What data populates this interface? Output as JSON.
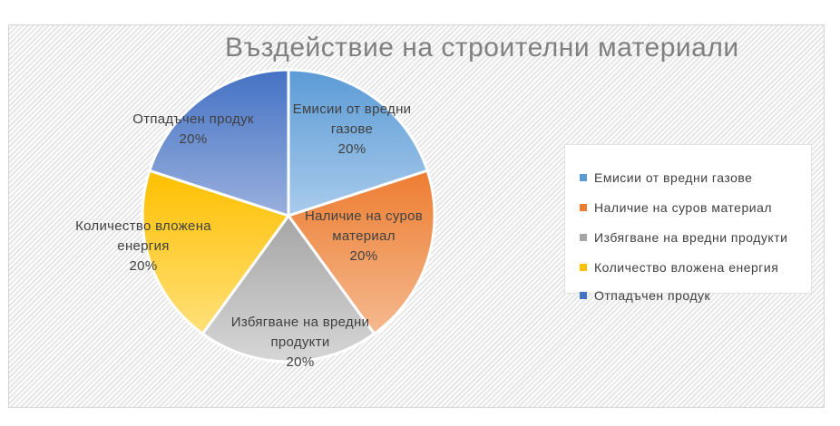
{
  "chart_data": {
    "type": "pie",
    "title": "Въздействие на строителни  материали",
    "slices": [
      {
        "name": "Емисии от вредни газове",
        "value": 20,
        "label_lines": [
          "Емисии от вредни",
          "газове",
          "20%"
        ],
        "color": "#5B9BD5",
        "color_light": "#A9CBEC"
      },
      {
        "name": "Наличие на суров материал",
        "value": 20,
        "label_lines": [
          "Наличие на суров",
          "материал",
          "20%"
        ],
        "color": "#ED7D31",
        "color_light": "#F5B98F"
      },
      {
        "name": "Избягване на вредни продукти",
        "value": 20,
        "label_lines": [
          "Избягване на вредни",
          "продукти",
          "20%"
        ],
        "color": "#A5A5A5",
        "color_light": "#D6D6D6"
      },
      {
        "name": "Количество вложена енергия",
        "value": 20,
        "label_lines": [
          "Количество вложена",
          "енергия",
          "20%"
        ],
        "color": "#FFC000",
        "color_light": "#FFE07A"
      },
      {
        "name": "Отпадъчен продук",
        "value": 20,
        "label_lines": [
          "Отпадъчен продук",
          "20%"
        ],
        "color": "#4472C4",
        "color_light": "#9AB0DD"
      }
    ],
    "legend": {
      "position": "right",
      "items": [
        {
          "label": "Емисии от вредни газове",
          "color": "#5B9BD5"
        },
        {
          "label": "Наличие на суров материал",
          "color": "#ED7D31"
        },
        {
          "label": "Избягване на вредни продукти",
          "color": "#A5A5A5"
        },
        {
          "label": "Количество вложена енергия",
          "color": "#FFC000"
        },
        {
          "label": "Отпадъчен продук",
          "color": "#4472C4"
        }
      ]
    }
  }
}
